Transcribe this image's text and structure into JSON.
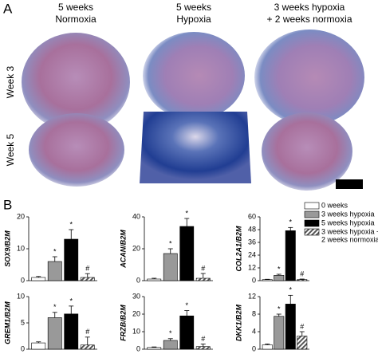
{
  "panel_a": {
    "label": "A",
    "columns": [
      [
        "5 weeks",
        "Normoxia"
      ],
      [
        "5 weeks",
        "Hypoxia"
      ],
      [
        "3 weeks hypoxia",
        "+ 2 weeks normoxia"
      ]
    ],
    "rows": [
      "Week 3",
      "Week 5"
    ]
  },
  "panel_b": {
    "label": "B",
    "legend": [
      {
        "name": [
          "0 weeks"
        ],
        "color": "#ffffff"
      },
      {
        "name": [
          "3 weeks hypoxia"
        ],
        "color": "#999999"
      },
      {
        "name": [
          "5 weeks hypoxia"
        ],
        "color": "#000000"
      },
      {
        "name": [
          "3 weeks hypoxia +",
          "2 weeks normoxia"
        ],
        "color": "#555555",
        "pattern": "hatch"
      }
    ]
  },
  "chart_data": [
    {
      "type": "bar",
      "ylabel": "SOX9/B2M",
      "categories": [
        null,
        null,
        null,
        null
      ],
      "values": [
        1,
        6,
        13,
        1
      ],
      "errors": [
        0.3,
        1.5,
        3,
        1.2
      ],
      "annotations": [
        null,
        "*",
        "*",
        "#"
      ],
      "ylim": [
        0,
        20
      ],
      "yticks": [
        0,
        10,
        20
      ]
    },
    {
      "type": "bar",
      "ylabel": "ACAN/B2M",
      "categories": [
        null,
        null,
        null,
        null
      ],
      "values": [
        1,
        17,
        34,
        1.5
      ],
      "errors": [
        0.5,
        3,
        5,
        3
      ],
      "annotations": [
        null,
        "*",
        "*",
        "#"
      ],
      "ylim": [
        0,
        40
      ],
      "yticks": [
        0,
        20,
        40
      ]
    },
    {
      "type": "bar",
      "ylabel": "COL2A1/B2M",
      "categories": [
        null,
        null,
        null,
        null
      ],
      "values": [
        1,
        5,
        47,
        1
      ],
      "errors": [
        0.3,
        1,
        3,
        0.5
      ],
      "annotations": [
        null,
        "*",
        "*",
        "#"
      ],
      "ylim": [
        0,
        60
      ],
      "yticks": [
        0,
        12,
        24,
        36,
        48,
        60
      ]
    },
    {
      "type": "bar",
      "ylabel": "GREM1/B2M",
      "categories": [
        null,
        null,
        null,
        null
      ],
      "values": [
        1.2,
        6,
        6.7,
        0.8
      ],
      "errors": [
        0.2,
        1,
        1.5,
        1.5
      ],
      "annotations": [
        null,
        "*",
        "*",
        "#"
      ],
      "ylim": [
        0,
        10
      ],
      "yticks": [
        0,
        5,
        10
      ]
    },
    {
      "type": "bar",
      "ylabel": "FRZB/B2M",
      "categories": [
        null,
        null,
        null,
        null
      ],
      "values": [
        1,
        5,
        19,
        1.5
      ],
      "errors": [
        0.3,
        1,
        3,
        1.5
      ],
      "annotations": [
        null,
        "*",
        "*",
        "#"
      ],
      "ylim": [
        0,
        30
      ],
      "yticks": [
        0,
        10,
        20,
        30
      ]
    },
    {
      "type": "bar",
      "ylabel": "DKK1/B2M",
      "categories": [
        null,
        null,
        null,
        null
      ],
      "values": [
        1,
        7.5,
        10.3,
        3
      ],
      "errors": [
        0.2,
        0.5,
        2,
        1
      ],
      "annotations": [
        null,
        "*",
        "*",
        "#"
      ],
      "ylim": [
        0,
        12
      ],
      "yticks": [
        0,
        4,
        8,
        12
      ]
    }
  ]
}
